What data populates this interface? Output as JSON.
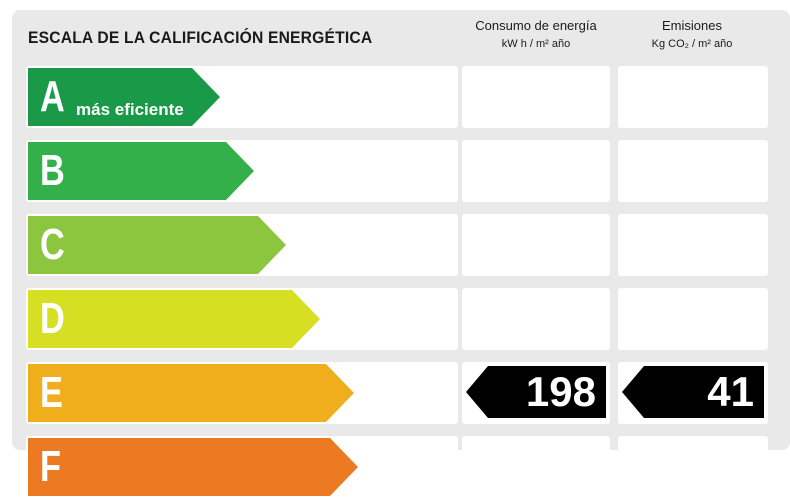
{
  "header": {
    "title": "ESCALA DE LA CALIFICACIÓN ENERGÉTICA",
    "energy_title": "Consumo de energía",
    "energy_unit": "kW h / m² año",
    "emissions_title": "Emisiones",
    "emissions_unit": "Kg CO₂ / m² año"
  },
  "ratings": [
    {
      "letter": "A",
      "label": "más eficiente",
      "color": "#1a9a48"
    },
    {
      "letter": "B",
      "label": "",
      "color": "#33b04a"
    },
    {
      "letter": "C",
      "label": "",
      "color": "#8cc63f"
    },
    {
      "letter": "D",
      "label": "",
      "color": "#d7df23"
    },
    {
      "letter": "E",
      "label": "",
      "color": "#f0ad1c"
    },
    {
      "letter": "F",
      "label": "",
      "color": "#ec7a23"
    }
  ],
  "current": {
    "rating": "E",
    "energy_value": "198",
    "emissions_value": "41"
  }
}
